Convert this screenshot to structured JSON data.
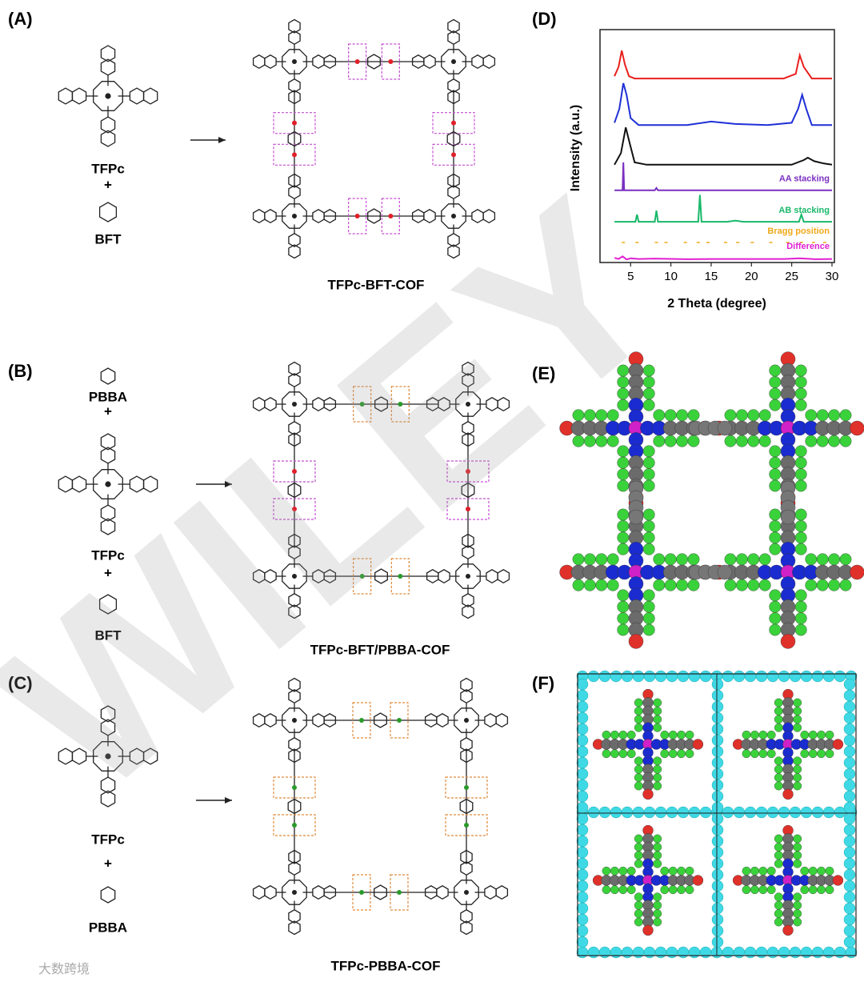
{
  "panels": {
    "a": {
      "label": "(A)",
      "monomer1": "TFPc",
      "plus": "+",
      "monomer2": "BFT",
      "product": "TFPc-BFT-COF"
    },
    "b": {
      "label": "(B)",
      "monomer1": "PBBA",
      "plus1": "+",
      "monomer2": "TFPc",
      "plus2": "+",
      "monomer3": "BFT",
      "product": "TFPc-BFT/PBBA-COF"
    },
    "c": {
      "label": "(C)",
      "monomer1": "TFPc",
      "plus": "+",
      "monomer2": "PBBA",
      "product": "TFPc-PBBA-COF"
    },
    "d": {
      "label": "(D)"
    },
    "e": {
      "label": "(E)"
    },
    "f": {
      "label": "(F)"
    }
  },
  "chart_data": {
    "type": "line",
    "xlabel": "2 Theta (degree)",
    "ylabel": "Intensity (a.u.)",
    "xlim": [
      1.2,
      30.3
    ],
    "ylim": [
      0,
      100
    ],
    "xticks": [
      5,
      10,
      15,
      20,
      25,
      30
    ],
    "series": [
      {
        "color": "#e8201c",
        "x": [
          3,
          3.5,
          3.9,
          4.3,
          4.8,
          5.5,
          7,
          10,
          15,
          20,
          24,
          25.5,
          26,
          26.5,
          27.5,
          29,
          30
        ],
        "values": [
          80,
          84,
          91,
          85,
          80,
          79,
          79,
          79,
          79,
          79,
          79,
          81,
          89,
          84,
          79,
          79,
          79
        ]
      },
      {
        "color": "#1f2fd6",
        "x": [
          3,
          3.6,
          4.1,
          4.5,
          5,
          6,
          8,
          12,
          15,
          18,
          22,
          25,
          25.8,
          26.3,
          26.8,
          27.5,
          30
        ],
        "values": [
          60,
          66,
          77,
          72,
          62,
          59,
          59,
          59,
          60.5,
          59.5,
          59,
          60,
          66,
          72,
          66,
          59,
          59
        ]
      },
      {
        "color": "#111111",
        "x": [
          3,
          3.8,
          4.4,
          4.9,
          5.5,
          7,
          10,
          15,
          20,
          25,
          26.5,
          27,
          27.8,
          29,
          30
        ],
        "values": [
          42,
          47,
          58,
          51,
          43,
          42,
          42,
          42,
          42,
          42,
          44,
          45,
          43.5,
          42.5,
          42
        ]
      },
      {
        "name": "AA stacking",
        "color": "#7a2fc0",
        "x": [
          3,
          4.0,
          4.1,
          4.2,
          5,
          8,
          8.2,
          8.4,
          12,
          20,
          30
        ],
        "values": [
          31,
          31,
          43,
          31,
          31,
          31,
          32,
          31,
          31,
          31,
          31
        ]
      },
      {
        "name": "AB stacking",
        "color": "#19b86a",
        "x": [
          3,
          5.6,
          5.8,
          6,
          8,
          8.2,
          8.4,
          13.4,
          13.6,
          13.8,
          17,
          18,
          19,
          25.9,
          26.2,
          26.5,
          30
        ],
        "values": [
          17.5,
          17.5,
          20.6,
          17.5,
          17.5,
          22.3,
          17.5,
          17.5,
          29,
          17.5,
          17.5,
          18,
          17.5,
          17.5,
          20.6,
          17.5,
          17.5
        ]
      },
      {
        "name": "Bragg position",
        "color": "#f0a818",
        "style": "ticks",
        "x": [
          4.1,
          5.8,
          8.2,
          9.4,
          11.8,
          13.4,
          14.6,
          16.8,
          18.3,
          20.1,
          22.4,
          24.5,
          26.2,
          27.7,
          29.1
        ],
        "values": [
          8.6,
          8.6,
          8.6,
          8.6,
          8.6,
          8.6,
          8.6,
          8.6,
          8.6,
          8.6,
          8.6,
          8.6,
          8.6,
          8.6,
          8.6
        ]
      },
      {
        "name": "Difference",
        "color": "#e020d0",
        "x": [
          3,
          3.5,
          4,
          4.5,
          5,
          6,
          8,
          12,
          16,
          20,
          24,
          26,
          28,
          30
        ],
        "values": [
          2,
          1.5,
          2.6,
          1.3,
          1.8,
          1.5,
          1.7,
          1.4,
          1.5,
          1.5,
          1.5,
          1.8,
          1.4,
          1.5
        ]
      }
    ]
  },
  "watermark": "WILEY",
  "logo": "大数跨境"
}
